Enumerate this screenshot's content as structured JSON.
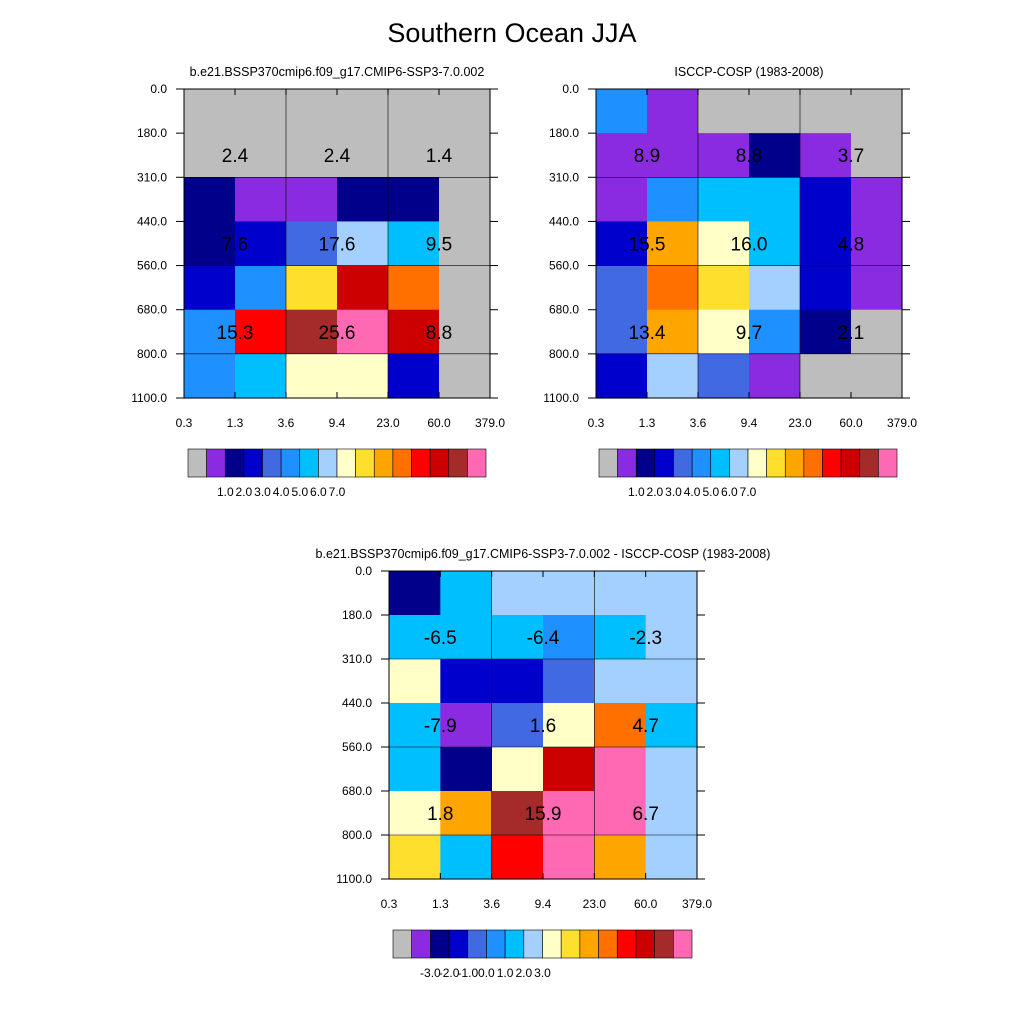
{
  "title": "Southern Ocean JJA",
  "colors": {
    "table": [
      "#bdbdbd",
      "#8a2be2",
      "#00008b",
      "#0000cd",
      "#4169e1",
      "#1e90ff",
      "#00bfff",
      "#a3d0ff",
      "#ffffc8",
      "#ffdf2e",
      "#ffa500",
      "#ff7000",
      "#ff0000",
      "#cc0000",
      "#a52a2a",
      "#ff69b4"
    ],
    "grid": "#000000"
  },
  "chart_data": [
    {
      "type": "heatmap",
      "title": "b.e21.BSSP370cmip6.f09_g17.CMIP6-SSP3-7.0.002",
      "x_ticks": [
        "0.3",
        "1.3",
        "3.6",
        "9.4",
        "23.0",
        "60.0",
        "379.0"
      ],
      "y_ticks": [
        "0.0",
        "180.0",
        "310.0",
        "440.0",
        "560.0",
        "680.0",
        "800.0",
        "1100.0"
      ],
      "cells": [
        [
          0,
          0,
          0,
          0,
          0,
          0
        ],
        [
          0,
          0,
          0,
          0,
          0,
          0
        ],
        [
          2,
          1,
          1,
          2,
          2,
          0
        ],
        [
          2,
          3,
          4,
          7,
          6,
          0
        ],
        [
          3,
          5,
          9,
          13,
          11,
          0
        ],
        [
          5,
          12,
          14,
          15,
          13,
          0
        ],
        [
          5,
          6,
          8,
          8,
          3,
          0
        ]
      ],
      "labels": [
        [
          "2.4",
          "2.4",
          "1.4"
        ],
        [
          "7.6",
          "17.6",
          "9.5"
        ],
        [
          "15.3",
          "25.6",
          "8.8"
        ]
      ],
      "colorbar_labels": [
        "1.0",
        "2.0",
        "3.0",
        "4.0",
        "5.0",
        "6.0",
        "7.0"
      ]
    },
    {
      "type": "heatmap",
      "title": "ISCCP-COSP (1983-2008)",
      "x_ticks": [
        "0.3",
        "1.3",
        "3.6",
        "9.4",
        "23.0",
        "60.0",
        "379.0"
      ],
      "y_ticks": [
        "0.0",
        "180.0",
        "310.0",
        "440.0",
        "560.0",
        "680.0",
        "800.0",
        "1100.0"
      ],
      "cells": [
        [
          5,
          1,
          0,
          0,
          0,
          0
        ],
        [
          1,
          1,
          1,
          2,
          1,
          0
        ],
        [
          1,
          5,
          6,
          6,
          3,
          1
        ],
        [
          3,
          10,
          8,
          6,
          3,
          1
        ],
        [
          4,
          11,
          9,
          7,
          3,
          1
        ],
        [
          4,
          10,
          8,
          5,
          2,
          0
        ],
        [
          3,
          7,
          4,
          1,
          0,
          0
        ]
      ],
      "labels": [
        [
          "8.9",
          "8.8",
          "3.7"
        ],
        [
          "15.5",
          "16.0",
          "4.8"
        ],
        [
          "13.4",
          "9.7",
          "2.1"
        ]
      ],
      "colorbar_labels": [
        "1.0",
        "2.0",
        "3.0",
        "4.0",
        "5.0",
        "6.0",
        "7.0"
      ]
    },
    {
      "type": "heatmap",
      "title": "b.e21.BSSP370cmip6.f09_g17.CMIP6-SSP3-7.0.002 - ISCCP-COSP (1983-2008)",
      "x_ticks": [
        "0.3",
        "1.3",
        "3.6",
        "9.4",
        "23.0",
        "60.0",
        "379.0"
      ],
      "y_ticks": [
        "0.0",
        "180.0",
        "310.0",
        "440.0",
        "560.0",
        "680.0",
        "800.0",
        "1100.0"
      ],
      "cells": [
        [
          2,
          6,
          7,
          7,
          7,
          7
        ],
        [
          6,
          6,
          6,
          5,
          6,
          7
        ],
        [
          8,
          3,
          3,
          4,
          7,
          7
        ],
        [
          6,
          1,
          4,
          8,
          11,
          6
        ],
        [
          6,
          2,
          8,
          13,
          15,
          7
        ],
        [
          8,
          10,
          14,
          15,
          15,
          7
        ],
        [
          9,
          6,
          12,
          15,
          10,
          7
        ]
      ],
      "labels": [
        [
          "-6.5",
          "-6.4",
          "-2.3"
        ],
        [
          "-7.9",
          "1.6",
          "4.7"
        ],
        [
          "1.8",
          "15.9",
          "6.7"
        ]
      ],
      "colorbar_labels": [
        "-3.0",
        "-2.0",
        "-1.0",
        "0.0",
        "1.0",
        "2.0",
        "3.0"
      ]
    }
  ]
}
